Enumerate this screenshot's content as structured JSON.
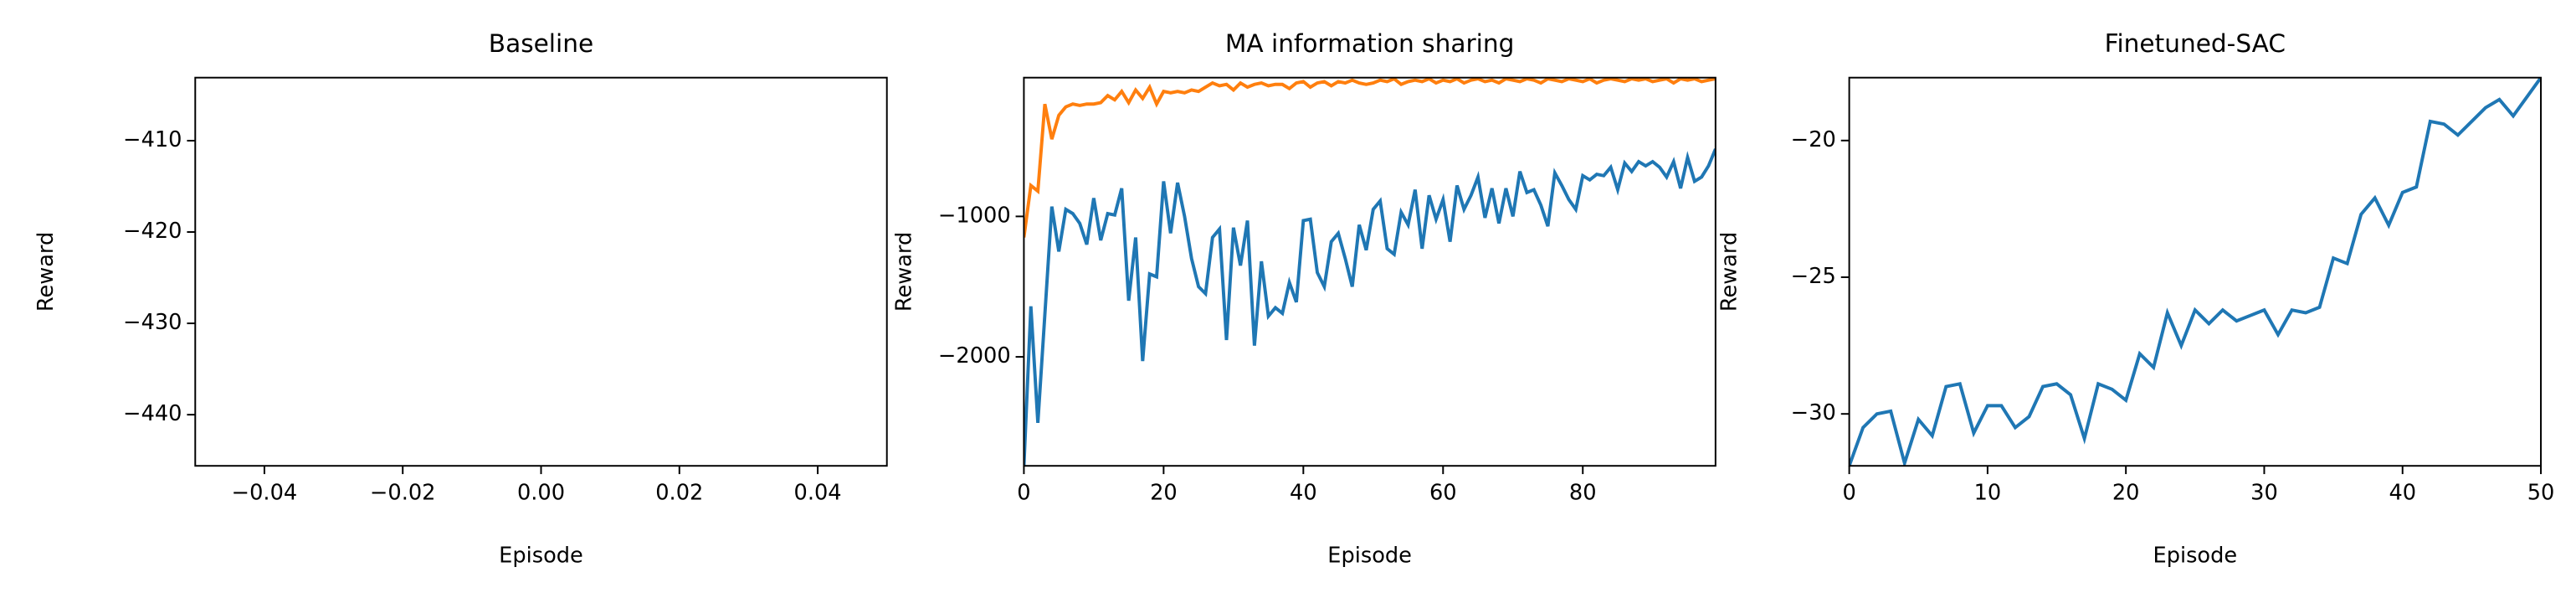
{
  "chart_data": [
    {
      "type": "line",
      "title": "Baseline",
      "xlabel": "Episode",
      "ylabel": "Reward",
      "xlim": [
        -0.05,
        0.05
      ],
      "xticks": [
        {
          "value": -0.04,
          "label": "−0.04"
        },
        {
          "value": -0.02,
          "label": "−0.02"
        },
        {
          "value": 0,
          "label": "0.00"
        },
        {
          "value": 0.02,
          "label": "0.02"
        },
        {
          "value": 0.04,
          "label": "0.04"
        }
      ],
      "ylim": [
        -445.6,
        -403.1
      ],
      "yticks": [
        {
          "value": -410,
          "label": "−410"
        },
        {
          "value": -420,
          "label": "−420"
        },
        {
          "value": -430,
          "label": "−430"
        },
        {
          "value": -440,
          "label": "−440"
        }
      ],
      "series": []
    },
    {
      "type": "line",
      "title": "MA information sharing",
      "xlabel": "Episode",
      "ylabel": "Reward",
      "xlim": [
        0,
        99
      ],
      "xticks": [
        0,
        20,
        40,
        60,
        80
      ],
      "ylim": [
        -2776,
        -12
      ],
      "yticks": [
        {
          "value": -1000,
          "label": "−1000"
        },
        {
          "value": -2000,
          "label": "−2000"
        }
      ],
      "x": [
        0,
        1,
        2,
        3,
        4,
        5,
        6,
        7,
        8,
        9,
        10,
        11,
        12,
        13,
        14,
        15,
        16,
        17,
        18,
        19,
        20,
        21,
        22,
        23,
        24,
        25,
        26,
        27,
        28,
        29,
        30,
        31,
        32,
        33,
        34,
        35,
        36,
        37,
        38,
        39,
        40,
        41,
        42,
        43,
        44,
        45,
        46,
        47,
        48,
        49,
        50,
        51,
        52,
        53,
        54,
        55,
        56,
        57,
        58,
        59,
        60,
        61,
        62,
        63,
        64,
        65,
        66,
        67,
        68,
        69,
        70,
        71,
        72,
        73,
        74,
        75,
        76,
        77,
        78,
        79,
        80,
        81,
        82,
        83,
        84,
        85,
        86,
        87,
        88,
        89,
        90,
        91,
        92,
        93,
        94,
        95,
        96,
        97,
        98,
        99
      ],
      "series": [
        {
          "color": "#1f77b4",
          "values": [
            -2780,
            -1640,
            -2470,
            -1700,
            -930,
            -1250,
            -950,
            -980,
            -1050,
            -1200,
            -870,
            -1170,
            -980,
            -990,
            -800,
            -1600,
            -1150,
            -2030,
            -1410,
            -1430,
            -750,
            -1120,
            -760,
            -1000,
            -1300,
            -1500,
            -1550,
            -1150,
            -1090,
            -1880,
            -1080,
            -1350,
            -1030,
            -1920,
            -1320,
            -1710,
            -1650,
            -1690,
            -1470,
            -1610,
            -1030,
            -1020,
            -1400,
            -1500,
            -1180,
            -1120,
            -1300,
            -1500,
            -1060,
            -1240,
            -950,
            -890,
            -1230,
            -1270,
            -970,
            -1060,
            -810,
            -1230,
            -850,
            -1020,
            -880,
            -1180,
            -780,
            -950,
            -850,
            -720,
            -1010,
            -800,
            -1050,
            -800,
            -1000,
            -680,
            -830,
            -810,
            -920,
            -1070,
            -690,
            -780,
            -880,
            -950,
            -710,
            -740,
            -700,
            -710,
            -650,
            -810,
            -620,
            -680,
            -610,
            -640,
            -610,
            -650,
            -720,
            -610,
            -800,
            -580,
            -750,
            -720,
            -640,
            -520
          ]
        },
        {
          "color": "#ff7f0e",
          "values": [
            -1150,
            -780,
            -820,
            -200,
            -450,
            -280,
            -220,
            -200,
            -210,
            -200,
            -200,
            -190,
            -140,
            -170,
            -110,
            -190,
            -100,
            -160,
            -80,
            -200,
            -110,
            -120,
            -110,
            -120,
            -100,
            -110,
            -80,
            -50,
            -70,
            -60,
            -100,
            -50,
            -80,
            -60,
            -50,
            -70,
            -60,
            -60,
            -90,
            -50,
            -40,
            -80,
            -50,
            -40,
            -70,
            -40,
            -50,
            -30,
            -50,
            -60,
            -50,
            -30,
            -40,
            -20,
            -60,
            -40,
            -30,
            -40,
            -20,
            -50,
            -30,
            -40,
            -20,
            -50,
            -30,
            -20,
            -40,
            -30,
            -50,
            -20,
            -30,
            -40,
            -20,
            -30,
            -50,
            -20,
            -30,
            -40,
            -20,
            -30,
            -40,
            -20,
            -50,
            -30,
            -20,
            -30,
            -40,
            -20,
            -30,
            -20,
            -40,
            -30,
            -20,
            -50,
            -20,
            -30,
            -20,
            -40,
            -30,
            -20
          ]
        }
      ]
    },
    {
      "type": "line",
      "title": "Finetuned-SAC",
      "xlabel": "Episode",
      "ylabel": "Reward",
      "xlim": [
        0,
        50
      ],
      "xticks": [
        0,
        10,
        20,
        30,
        40,
        50
      ],
      "ylim": [
        -31.9,
        -17.7
      ],
      "yticks": [
        {
          "value": -20,
          "label": "−20"
        },
        {
          "value": -25,
          "label": "−25"
        },
        {
          "value": -30,
          "label": "−30"
        }
      ],
      "x": [
        0,
        1,
        2,
        3,
        4,
        5,
        6,
        7,
        8,
        9,
        10,
        11,
        12,
        13,
        14,
        15,
        16,
        17,
        18,
        19,
        20,
        21,
        22,
        23,
        24,
        25,
        26,
        27,
        28,
        29,
        30,
        31,
        32,
        33,
        34,
        35,
        36,
        37,
        38,
        39,
        40,
        41,
        42,
        43,
        44,
        45,
        46,
        47,
        48,
        49,
        50
      ],
      "series": [
        {
          "color": "#1f77b4",
          "values": [
            -31.9,
            -30.5,
            -30,
            -29.9,
            -31.8,
            -30.2,
            -30.8,
            -29,
            -28.9,
            -30.7,
            -29.7,
            -29.7,
            -30.5,
            -30.1,
            -29,
            -28.9,
            -29.3,
            -30.9,
            -28.9,
            -29.1,
            -29.5,
            -27.8,
            -28.3,
            -26.3,
            -27.5,
            -26.2,
            -26.7,
            -26.2,
            -26.6,
            -26.4,
            -26.2,
            -27.1,
            -26.2,
            -26.3,
            -26.1,
            -24.3,
            -24.5,
            -22.7,
            -22.1,
            -23.1,
            -21.9,
            -21.7,
            -19.3,
            -19.4,
            -19.8,
            -19.3,
            -18.8,
            -18.5,
            -19.1,
            -18.4,
            -17.7
          ]
        }
      ]
    }
  ]
}
